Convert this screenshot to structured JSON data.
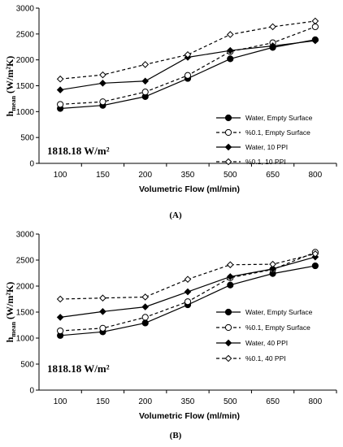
{
  "chart_data": [
    {
      "type": "line",
      "panel_label": "(A)",
      "xlabel": "Volumetric Flow (ml/min)",
      "ylabel_main": "h",
      "ylabel_sub": "mean",
      "ylabel_unit": " (W/m²K)",
      "condition": "1818.18 W/m²",
      "categories": [
        "100",
        "150",
        "200",
        "350",
        "500",
        "650",
        "800"
      ],
      "ylim": [
        0,
        3000
      ],
      "yticks": [
        "0",
        "500",
        "1000",
        "1500",
        "2000",
        "2500",
        "3000"
      ],
      "legend_placement": "right",
      "grid": false,
      "series": [
        {
          "name": "Water, Empty Surface",
          "values": [
            1060,
            1120,
            1290,
            1640,
            2020,
            2240,
            2390
          ],
          "marker": "circle-filled",
          "dash": false
        },
        {
          "name": "%0.1, Empty Surface",
          "values": [
            1140,
            1190,
            1380,
            1700,
            2160,
            2330,
            2640
          ],
          "marker": "circle-open",
          "dash": true
        },
        {
          "name": "Water, 10 PPI",
          "values": [
            1420,
            1550,
            1590,
            2050,
            2180,
            2270,
            2370
          ],
          "marker": "diamond-filled",
          "dash": false
        },
        {
          "name": "%0.1, 10 PPI",
          "values": [
            1630,
            1710,
            1910,
            2100,
            2490,
            2640,
            2750
          ],
          "marker": "diamond-open",
          "dash": true
        }
      ]
    },
    {
      "type": "line",
      "panel_label": "(B)",
      "xlabel": "Volumetric Flow (ml/min)",
      "ylabel_main": "h",
      "ylabel_sub": "mean",
      "ylabel_unit": " (W/m²K)",
      "condition": "1818.18 W/m²",
      "categories": [
        "100",
        "150",
        "200",
        "350",
        "500",
        "650",
        "800"
      ],
      "ylim": [
        0,
        3000
      ],
      "yticks": [
        "0",
        "500",
        "1000",
        "1500",
        "2000",
        "2500",
        "3000"
      ],
      "legend_placement": "right",
      "grid": false,
      "series": [
        {
          "name": "Water, Empty Surface",
          "values": [
            1050,
            1120,
            1290,
            1640,
            2020,
            2240,
            2390
          ],
          "marker": "circle-filled",
          "dash": false
        },
        {
          "name": "%0.1, Empty Surface",
          "values": [
            1140,
            1190,
            1400,
            1700,
            2160,
            2320,
            2650
          ],
          "marker": "circle-open",
          "dash": true
        },
        {
          "name": "Water, 40 PPI",
          "values": [
            1400,
            1510,
            1600,
            1890,
            2180,
            2330,
            2560
          ],
          "marker": "diamond-filled",
          "dash": false
        },
        {
          "name": "%0.1, 40 PPI",
          "values": [
            1750,
            1770,
            1790,
            2130,
            2410,
            2420,
            2620
          ],
          "marker": "diamond-open",
          "dash": true
        }
      ]
    }
  ]
}
